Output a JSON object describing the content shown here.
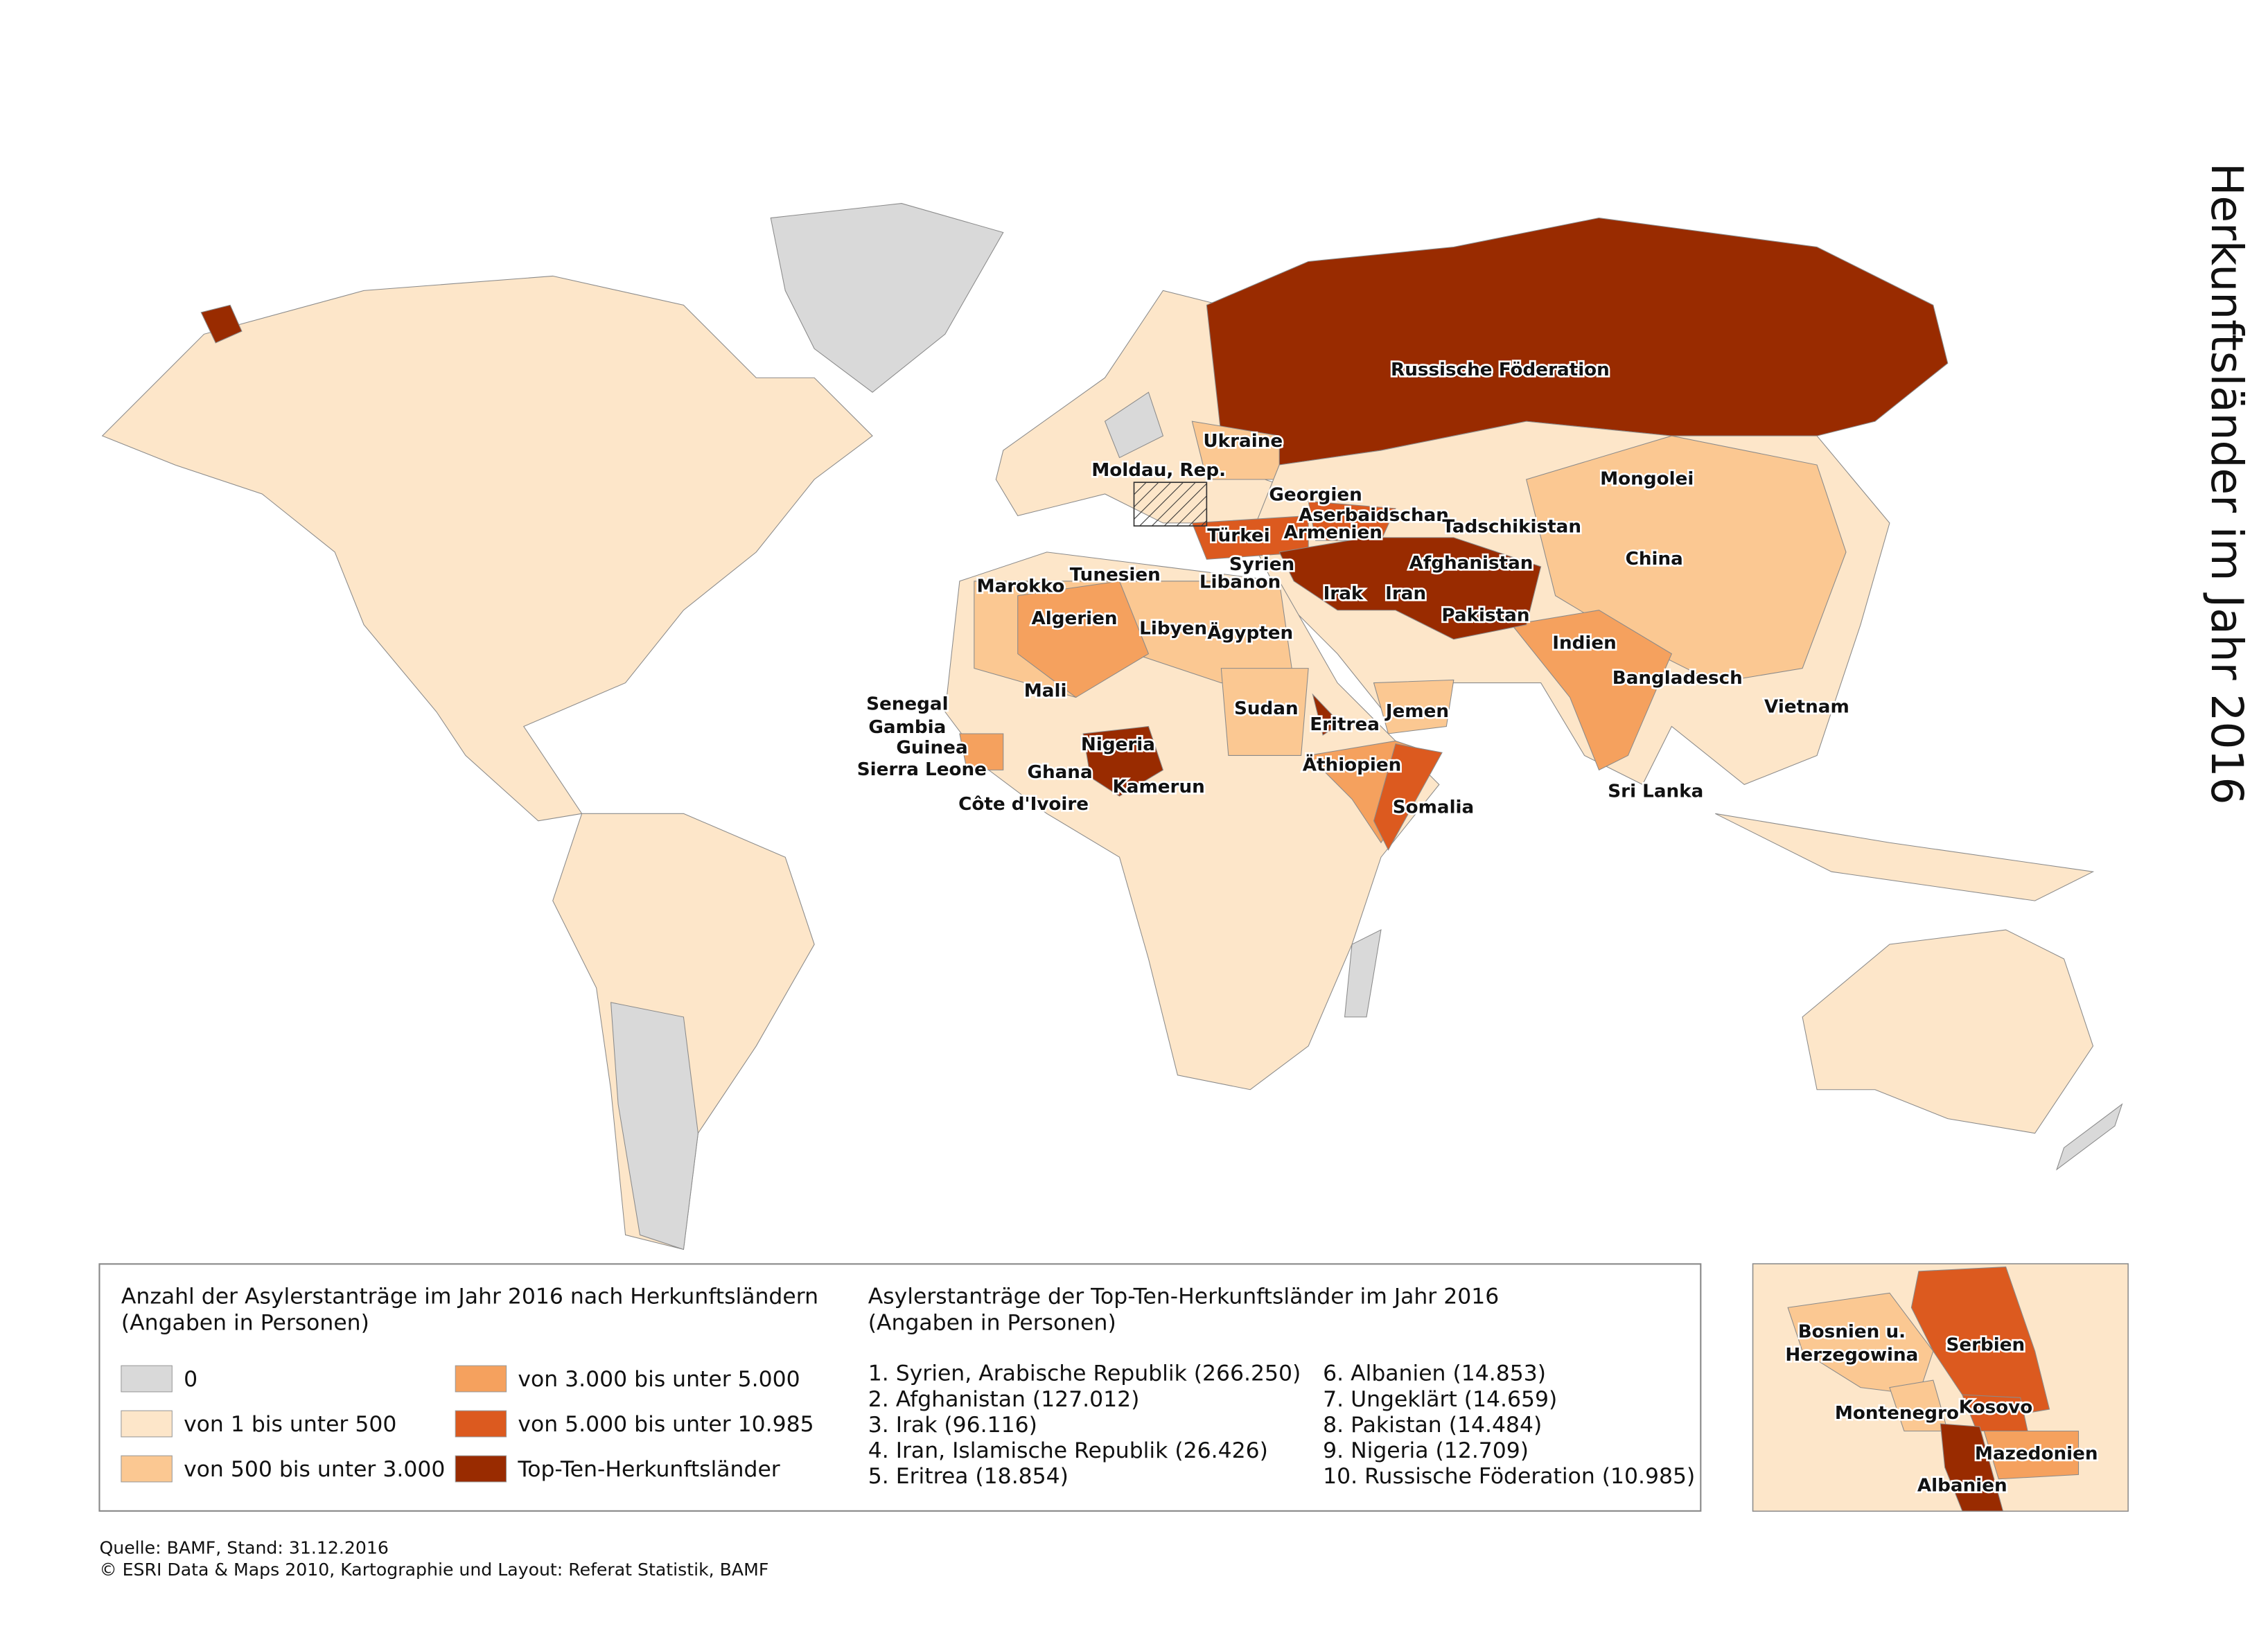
{
  "title": "Herkunftsländer im Jahr 2016",
  "map": {
    "labels": [
      "Russische Föderation",
      "Ukraine",
      "Moldau, Rep.",
      "Georgien",
      "Aserbaidschan",
      "Armenien",
      "Tadschikistan",
      "Mongolei",
      "Türkei",
      "Syrien",
      "Libanon",
      "Afghanistan",
      "Irak",
      "Iran",
      "Pakistan",
      "China",
      "Indien",
      "Bangladesch",
      "Vietnam",
      "Sri Lanka",
      "Marokko",
      "Tunesien",
      "Algerien",
      "Libyen",
      "Ägypten",
      "Mali",
      "Sudan",
      "Eritrea",
      "Jemen",
      "Senegal",
      "Gambia",
      "Guinea",
      "Sierra Leone",
      "Nigeria",
      "Ghana",
      "Kamerun",
      "Côte d'Ivoire",
      "Äthiopien",
      "Somalia"
    ]
  },
  "legend": {
    "title": [
      "Anzahl der Asylerstanträge im Jahr 2016 nach Herkunftsländern",
      "(Angaben in Personen)"
    ],
    "classes": [
      {
        "label": "0",
        "color": "#d9d9d9"
      },
      {
        "label": "von 1 bis unter 500",
        "color": "#fde6c9"
      },
      {
        "label": "von 500 bis unter 3.000",
        "color": "#fbc892"
      },
      {
        "label": "von 3.000 bis unter 5.000",
        "color": "#f5a15e"
      },
      {
        "label": "von 5.000 bis unter 10.985",
        "color": "#dc5a1f"
      },
      {
        "label": "Top-Ten-Herkunftsländer",
        "color": "#992b00"
      }
    ]
  },
  "top_ten": {
    "title": [
      "Asylerstanträge der Top-Ten-Herkunftsländer im Jahr 2016",
      "(Angaben in Personen)"
    ],
    "items": [
      "1. Syrien, Arabische Republik (266.250)",
      "2. Afghanistan (127.012)",
      "3. Irak (96.116)",
      "4. Iran, Islamische Republik (26.426)",
      "5. Eritrea (18.854)",
      "6. Albanien (14.853)",
      "7. Ungeklärt (14.659)",
      "8. Pakistan (14.484)",
      "9. Nigeria (12.709)",
      "10. Russische Föderation (10.985)"
    ]
  },
  "inset": {
    "labels": [
      "Bosnien u.",
      "Herzegowina",
      "Serbien",
      "Montenegro",
      "Kosovo",
      "Mazedonien",
      "Albanien"
    ]
  },
  "source": [
    "Quelle: BAMF, Stand: 31.12.2016",
    "© ESRI Data & Maps 2010, Kartographie und Layout: Referat Statistik, BAMF"
  ]
}
